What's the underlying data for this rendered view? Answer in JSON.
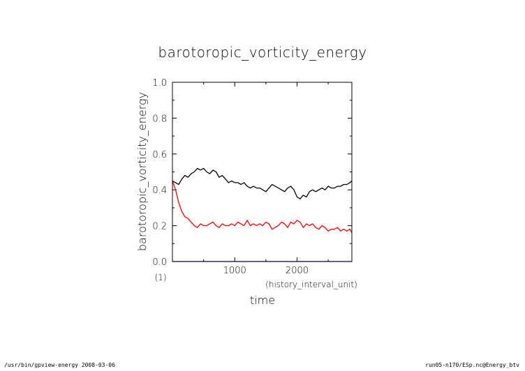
{
  "chart_data": {
    "type": "line",
    "title": "barotoropic_vorticity_energy",
    "xlabel": "time",
    "x_units": "(history_interval_unit)",
    "ylabel": "barotoropic_vorticity_energy",
    "y_units": "(1)",
    "xlim": [
      0,
      2880
    ],
    "ylim": [
      0,
      1.0
    ],
    "x_ticks": [
      1000,
      2000
    ],
    "x_tick_labels": [
      "1000",
      "2000"
    ],
    "y_ticks": [
      0.0,
      0.2,
      0.4,
      0.6,
      0.8,
      1.0
    ],
    "y_tick_labels": [
      "0.0",
      "0.2",
      "0.4",
      "0.6",
      "0.8",
      "1.0"
    ],
    "grid": false,
    "series": [
      {
        "color": "#000000",
        "x": [
          0,
          50,
          100,
          150,
          200,
          250,
          300,
          350,
          400,
          450,
          500,
          550,
          600,
          650,
          700,
          750,
          800,
          850,
          900,
          950,
          1000,
          1050,
          1100,
          1150,
          1200,
          1250,
          1300,
          1350,
          1400,
          1450,
          1500,
          1550,
          1600,
          1650,
          1700,
          1750,
          1800,
          1850,
          1900,
          1950,
          2000,
          2050,
          2100,
          2150,
          2200,
          2250,
          2300,
          2350,
          2400,
          2450,
          2500,
          2550,
          2600,
          2650,
          2700,
          2750,
          2800,
          2850,
          2880
        ],
        "y": [
          0.45,
          0.44,
          0.43,
          0.46,
          0.48,
          0.47,
          0.49,
          0.5,
          0.52,
          0.51,
          0.52,
          0.5,
          0.49,
          0.51,
          0.5,
          0.47,
          0.48,
          0.46,
          0.44,
          0.45,
          0.44,
          0.44,
          0.43,
          0.44,
          0.42,
          0.41,
          0.42,
          0.41,
          0.41,
          0.4,
          0.39,
          0.41,
          0.43,
          0.42,
          0.41,
          0.4,
          0.39,
          0.41,
          0.42,
          0.4,
          0.36,
          0.35,
          0.37,
          0.36,
          0.39,
          0.4,
          0.39,
          0.4,
          0.41,
          0.4,
          0.42,
          0.41,
          0.41,
          0.42,
          0.42,
          0.43,
          0.43,
          0.44,
          0.45
        ]
      },
      {
        "color": "#ff0000",
        "x": [
          0,
          50,
          100,
          150,
          200,
          250,
          300,
          350,
          400,
          450,
          500,
          550,
          600,
          650,
          700,
          750,
          800,
          850,
          900,
          950,
          1000,
          1050,
          1100,
          1150,
          1200,
          1250,
          1300,
          1350,
          1400,
          1450,
          1500,
          1550,
          1600,
          1650,
          1700,
          1750,
          1800,
          1850,
          1900,
          1950,
          2000,
          2050,
          2100,
          2150,
          2200,
          2250,
          2300,
          2350,
          2400,
          2450,
          2500,
          2550,
          2600,
          2650,
          2700,
          2750,
          2800,
          2850,
          2880
        ],
        "y": [
          0.45,
          0.4,
          0.33,
          0.28,
          0.25,
          0.24,
          0.22,
          0.2,
          0.19,
          0.21,
          0.2,
          0.2,
          0.21,
          0.22,
          0.2,
          0.19,
          0.21,
          0.2,
          0.2,
          0.21,
          0.2,
          0.22,
          0.21,
          0.2,
          0.23,
          0.2,
          0.21,
          0.2,
          0.21,
          0.2,
          0.22,
          0.21,
          0.18,
          0.19,
          0.2,
          0.22,
          0.21,
          0.19,
          0.22,
          0.21,
          0.23,
          0.22,
          0.19,
          0.21,
          0.2,
          0.21,
          0.19,
          0.18,
          0.2,
          0.19,
          0.17,
          0.18,
          0.18,
          0.19,
          0.17,
          0.18,
          0.17,
          0.18,
          0.16
        ]
      },
      {
        "color": "#0000ff",
        "x": [
          0,
          2880
        ],
        "y": [
          0.0,
          0.0
        ]
      }
    ]
  },
  "footer": {
    "left": "/usr/bin/gpview-energy  2008-03-06",
    "right": "run05-n170/ESp.nc@Energy_btv"
  }
}
